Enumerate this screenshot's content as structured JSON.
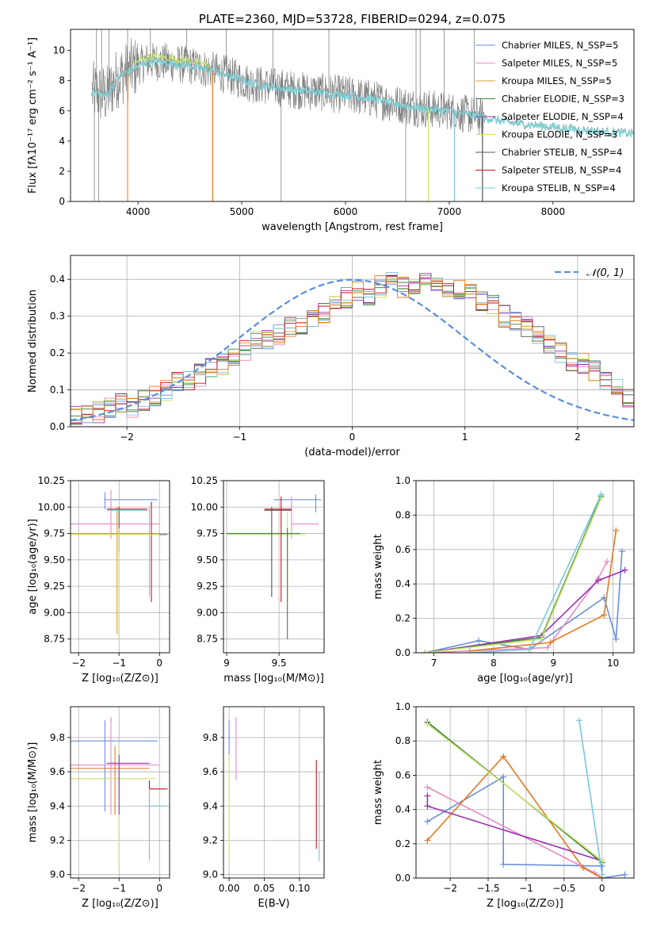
{
  "colors": {
    "chabrier_miles": "#6a8fdb",
    "salpeter_miles": "#e88bc4",
    "kroupa_miles": "#d9a02a",
    "chabrier_elodie": "#3e7f3e",
    "salpeter_elodie": "#9b30b0",
    "kroupa_elodie": "#c8e46a",
    "chabrier_stelib": "#555555",
    "salpeter_stelib": "#c0141e",
    "kroupa_stelib": "#78c8e0",
    "orange": "#e07a22",
    "data": "#808080",
    "model": "#7ad8d8",
    "normal": "#5b8fd8"
  },
  "chart_data": [
    {
      "id": "spectrum",
      "type": "line",
      "title": "PLATE=2360, MJD=53728, FIBERID=0294, z=0.075",
      "xlabel": "wavelength [Angstrom, rest frame]",
      "ylabel": "Flux [fλ10⁻¹⁷ erg cm⁻² s⁻¹ A⁻¹]",
      "xlim": [
        3350,
        8780
      ],
      "ylim": [
        0,
        11.4
      ],
      "xticks": [
        4000,
        5000,
        6000,
        7000,
        8000
      ],
      "yticks": [
        0,
        2,
        4,
        6,
        8,
        10
      ],
      "grid": false,
      "legend_position": "top-right",
      "legend": [
        "Chabrier MILES, N_SSP=5",
        "Salpeter MILES, N_SSP=5",
        "Kroupa MILES, N_SSP=5",
        "Chabrier ELODIE, N_SSP=3",
        "Salpeter ELODIE, N_SSP=4",
        "Kroupa ELODIE, N_SSP=3",
        "Chabrier STELIB, N_SSP=4",
        "Salpeter STELIB, N_SSP=4",
        "Kroupa STELIB, N_SSP=4"
      ],
      "continuum_points": [
        [
          3550,
          7.3
        ],
        [
          3700,
          7.0
        ],
        [
          3800,
          8.2
        ],
        [
          3950,
          8.8
        ],
        [
          4100,
          9.3
        ],
        [
          4300,
          9.2
        ],
        [
          4500,
          9.0
        ],
        [
          4700,
          8.7
        ],
        [
          4900,
          8.3
        ],
        [
          5100,
          7.8
        ],
        [
          5300,
          7.6
        ],
        [
          5500,
          7.4
        ],
        [
          5800,
          7.2
        ],
        [
          6100,
          7.0
        ],
        [
          6400,
          6.6
        ],
        [
          6700,
          6.2
        ],
        [
          7000,
          6.0
        ],
        [
          7300,
          5.6
        ],
        [
          7600,
          5.2
        ],
        [
          7900,
          5.0
        ],
        [
          8200,
          4.8
        ],
        [
          8500,
          4.6
        ],
        [
          8780,
          4.5
        ]
      ]
    },
    {
      "id": "residuals",
      "type": "line",
      "xlabel": "(data-model)/error",
      "ylabel": "Normed distribution",
      "xlim": [
        -2.5,
        2.5
      ],
      "ylim": [
        0,
        0.465
      ],
      "xticks": [
        -2,
        -1,
        0,
        1,
        2
      ],
      "yticks": [
        0.0,
        0.1,
        0.2,
        0.3,
        0.4
      ],
      "grid": true,
      "legend_position": "top-right",
      "legend": [
        "𝒩(0, 1)"
      ],
      "bin_width": 0.1,
      "bins_from": -2.5,
      "histogram": [
        0.03,
        0.035,
        0.04,
        0.05,
        0.06,
        0.055,
        0.07,
        0.08,
        0.1,
        0.12,
        0.13,
        0.14,
        0.16,
        0.17,
        0.19,
        0.21,
        0.23,
        0.24,
        0.25,
        0.27,
        0.28,
        0.3,
        0.31,
        0.33,
        0.35,
        0.37,
        0.36,
        0.38,
        0.39,
        0.38,
        0.39,
        0.4,
        0.39,
        0.38,
        0.37,
        0.36,
        0.34,
        0.33,
        0.3,
        0.29,
        0.27,
        0.25,
        0.22,
        0.2,
        0.18,
        0.17,
        0.15,
        0.13,
        0.1,
        0.08
      ]
    },
    {
      "id": "z_age",
      "type": "scatter",
      "xlabel": "Z [log₁₀(Z/Z⊙)]",
      "ylabel": "age  [log₁₀(age/yr)]",
      "xlim": [
        -2.2,
        0.25
      ],
      "ylim": [
        8.62,
        10.25
      ],
      "xticks": [
        -2,
        -1,
        0
      ],
      "yticks": [
        8.75,
        9.0,
        9.25,
        9.5,
        9.75,
        10.0,
        10.25
      ],
      "grid": true
    },
    {
      "id": "mass_age",
      "type": "scatter",
      "xlabel": "mass [log₁₀(M/M⊙)]",
      "ylabel": "",
      "xlim": [
        8.97,
        9.93
      ],
      "ylim": [
        8.62,
        10.25
      ],
      "xticks": [
        9.0,
        9.5
      ],
      "yticks": [
        8.75,
        9.0,
        9.25,
        9.5,
        9.75,
        10.0,
        10.25
      ],
      "grid": true
    },
    {
      "id": "age_weight",
      "type": "line",
      "xlabel": "age  [log₁₀(age/yr)]",
      "ylabel": "mass weight",
      "xlim": [
        6.7,
        10.35
      ],
      "ylim": [
        0,
        1.0
      ],
      "xticks": [
        7,
        8,
        9,
        10
      ],
      "yticks": [
        0.0,
        0.2,
        0.4,
        0.6,
        0.8,
        1.0
      ],
      "grid": true,
      "series": [
        {
          "color": "chabrier_miles",
          "x": [
            6.85,
            7.75,
            8.6,
            9.85,
            10.05,
            10.15
          ],
          "y": [
            0.0,
            0.07,
            0.02,
            0.32,
            0.08,
            0.59
          ]
        },
        {
          "color": "salpeter_miles",
          "x": [
            6.85,
            8.9,
            9.75,
            9.9
          ],
          "y": [
            0.0,
            0.03,
            0.43,
            0.53
          ]
        },
        {
          "color": "orange",
          "x": [
            7.6,
            8.95,
            9.85,
            10.05
          ],
          "y": [
            0.01,
            0.06,
            0.22,
            0.71
          ]
        },
        {
          "color": "salpeter_elodie",
          "x": [
            6.85,
            8.8,
            9.75,
            10.2
          ],
          "y": [
            0.0,
            0.1,
            0.42,
            0.48
          ]
        },
        {
          "color": "chabrier_elodie",
          "x": [
            6.85,
            8.8,
            9.8
          ],
          "y": [
            0.0,
            0.09,
            0.91
          ]
        },
        {
          "color": "kroupa_elodie",
          "x": [
            6.85,
            8.8,
            9.8
          ],
          "y": [
            0.0,
            0.08,
            0.9
          ]
        },
        {
          "color": "kroupa_stelib",
          "x": [
            7.6,
            8.6,
            9.8
          ],
          "y": [
            0.0,
            0.02,
            0.92
          ]
        }
      ]
    },
    {
      "id": "z_mass",
      "type": "scatter",
      "xlabel": "Z [log₁₀(Z/Z⊙)]",
      "ylabel": "mass [log₁₀(M/M⊙)]",
      "xlim": [
        -2.2,
        0.25
      ],
      "ylim": [
        8.98,
        9.98
      ],
      "xticks": [
        -2,
        -1,
        0
      ],
      "yticks": [
        9.0,
        9.2,
        9.4,
        9.6,
        9.8
      ],
      "grid": true
    },
    {
      "id": "ebv_mass",
      "type": "scatter",
      "xlabel": "E(B-V)",
      "ylabel": "",
      "xlim": [
        -0.008,
        0.135
      ],
      "ylim": [
        8.98,
        9.98
      ],
      "xticks": [
        0.0,
        0.05,
        0.1
      ],
      "xticklabels": [
        "0.00",
        "0.05",
        "0.10"
      ],
      "yticks": [
        9.0,
        9.2,
        9.4,
        9.6,
        9.8
      ],
      "grid": true
    },
    {
      "id": "z_weight",
      "type": "line",
      "xlabel": "Z [log₁₀(Z/Z⊙)]",
      "ylabel": "mass weight",
      "xlim": [
        -2.45,
        0.42
      ],
      "ylim": [
        0,
        1.0
      ],
      "xticks": [
        -2.0,
        -1.5,
        -1.0,
        -0.5,
        0.0
      ],
      "yticks": [
        0.0,
        0.2,
        0.4,
        0.6,
        0.8,
        1.0
      ],
      "grid": true,
      "series": [
        {
          "color": "chabrier_miles",
          "x": [
            -2.3,
            -1.3,
            -1.3,
            0.0,
            0.0,
            0.3
          ],
          "y": [
            0.33,
            0.59,
            0.08,
            0.07,
            0.0,
            0.02
          ]
        },
        {
          "color": "salpeter_miles",
          "x": [
            -2.3,
            -0.1,
            0.0
          ],
          "y": [
            0.53,
            0.03,
            0.0
          ]
        },
        {
          "color": "orange",
          "x": [
            -2.3,
            -1.3,
            -0.25,
            0.0
          ],
          "y": [
            0.22,
            0.71,
            0.06,
            0.0
          ]
        },
        {
          "color": "salpeter_elodie",
          "x": [
            -2.3,
            -2.3,
            0.0
          ],
          "y": [
            0.48,
            0.42,
            0.1
          ]
        },
        {
          "color": "chabrier_elodie",
          "x": [
            -2.3,
            0.0
          ],
          "y": [
            0.91,
            0.09
          ]
        },
        {
          "color": "kroupa_elodie",
          "x": [
            -2.3,
            0.0
          ],
          "y": [
            0.9,
            0.1
          ]
        },
        {
          "color": "kroupa_stelib",
          "x": [
            -0.3,
            0.0
          ],
          "y": [
            0.92,
            0.02
          ]
        }
      ]
    }
  ]
}
